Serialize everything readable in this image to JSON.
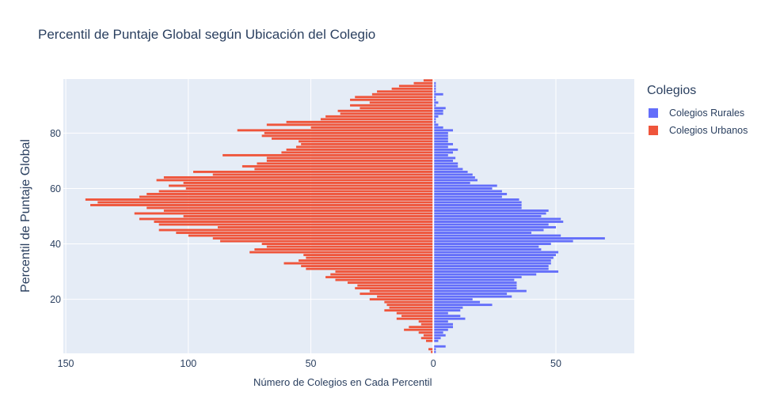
{
  "chart_data": {
    "type": "bar",
    "orientation": "horizontal",
    "title": "Percentil de Puntaje Global según Ubicación del Colegio",
    "xlabel": "Número de Colegios en Cada Percentil",
    "ylabel": "Percentil de Puntaje Global",
    "xlim": [
      -151,
      82
    ],
    "ylim": [
      0.5,
      99.5
    ],
    "x_ticks": [
      -150,
      -100,
      -50,
      0,
      50
    ],
    "x_tick_labels": [
      "150",
      "100",
      "50",
      "0",
      "50"
    ],
    "y_ticks": [
      20,
      40,
      60,
      80
    ],
    "legend_title": "Colegios",
    "legend_position": "right",
    "grid": true,
    "y": [
      1,
      2,
      3,
      4,
      5,
      6,
      7,
      8,
      9,
      10,
      11,
      12,
      13,
      14,
      15,
      16,
      17,
      18,
      19,
      20,
      21,
      22,
      23,
      24,
      25,
      26,
      27,
      28,
      29,
      30,
      31,
      32,
      33,
      34,
      35,
      36,
      37,
      38,
      39,
      40,
      41,
      42,
      43,
      44,
      45,
      46,
      47,
      48,
      49,
      50,
      51,
      52,
      53,
      54,
      55,
      56,
      57,
      58,
      59,
      60,
      61,
      62,
      63,
      64,
      65,
      66,
      67,
      68,
      69,
      70,
      71,
      72,
      73,
      74,
      75,
      76,
      77,
      78,
      79,
      80,
      81,
      82,
      83,
      84,
      85,
      86,
      87,
      88,
      89,
      90,
      91,
      92,
      93,
      94,
      95,
      96,
      97,
      98,
      99
    ],
    "series": [
      {
        "name": "Colegios Rurales",
        "color": "#636efa",
        "values": [
          1,
          1,
          5,
          0,
          2,
          3,
          5,
          4,
          6,
          8,
          8,
          6,
          13,
          11,
          6,
          11,
          12,
          24,
          19,
          16,
          32,
          30,
          38,
          34,
          34,
          34,
          33,
          36,
          42,
          51,
          47,
          47,
          48,
          48,
          49,
          50,
          51,
          44,
          43,
          48,
          57,
          70,
          52,
          40,
          45,
          50,
          47,
          53,
          52,
          44,
          46,
          47,
          36,
          36,
          36,
          35,
          28,
          30,
          28,
          24,
          26,
          15,
          18,
          17,
          16,
          14,
          12,
          10,
          10,
          8,
          9,
          6,
          8,
          10,
          6,
          8,
          6,
          6,
          6,
          6,
          8,
          4,
          2,
          1,
          1,
          2,
          4,
          4,
          5,
          1,
          2,
          1,
          1,
          4,
          1,
          1,
          1,
          1,
          0
        ]
      },
      {
        "name": "Colegios Urbanos",
        "color": "#ef553b",
        "values": [
          -1,
          -2,
          0,
          0,
          -3,
          -5,
          -4,
          -6,
          -12,
          -10,
          -5,
          -6,
          -15,
          -13,
          -15,
          -20,
          -18,
          -19,
          -20,
          -26,
          -23,
          -30,
          -26,
          -32,
          -31,
          -35,
          -40,
          -44,
          -42,
          -40,
          -52,
          -54,
          -61,
          -55,
          -52,
          -53,
          -75,
          -73,
          -68,
          -70,
          -87,
          -90,
          -100,
          -105,
          -112,
          -88,
          -112,
          -114,
          -120,
          -102,
          -122,
          -110,
          -117,
          -140,
          -137,
          -142,
          -120,
          -117,
          -112,
          -101,
          -108,
          -102,
          -113,
          -110,
          -90,
          -98,
          -73,
          -78,
          -72,
          -68,
          -68,
          -86,
          -62,
          -60,
          -56,
          -54,
          -55,
          -66,
          -70,
          -69,
          -80,
          -50,
          -68,
          -60,
          -46,
          -44,
          -38,
          -39,
          -30,
          -34,
          -26,
          -34,
          -32,
          -25,
          -23,
          -17,
          -14,
          -8,
          -4
        ]
      }
    ]
  }
}
